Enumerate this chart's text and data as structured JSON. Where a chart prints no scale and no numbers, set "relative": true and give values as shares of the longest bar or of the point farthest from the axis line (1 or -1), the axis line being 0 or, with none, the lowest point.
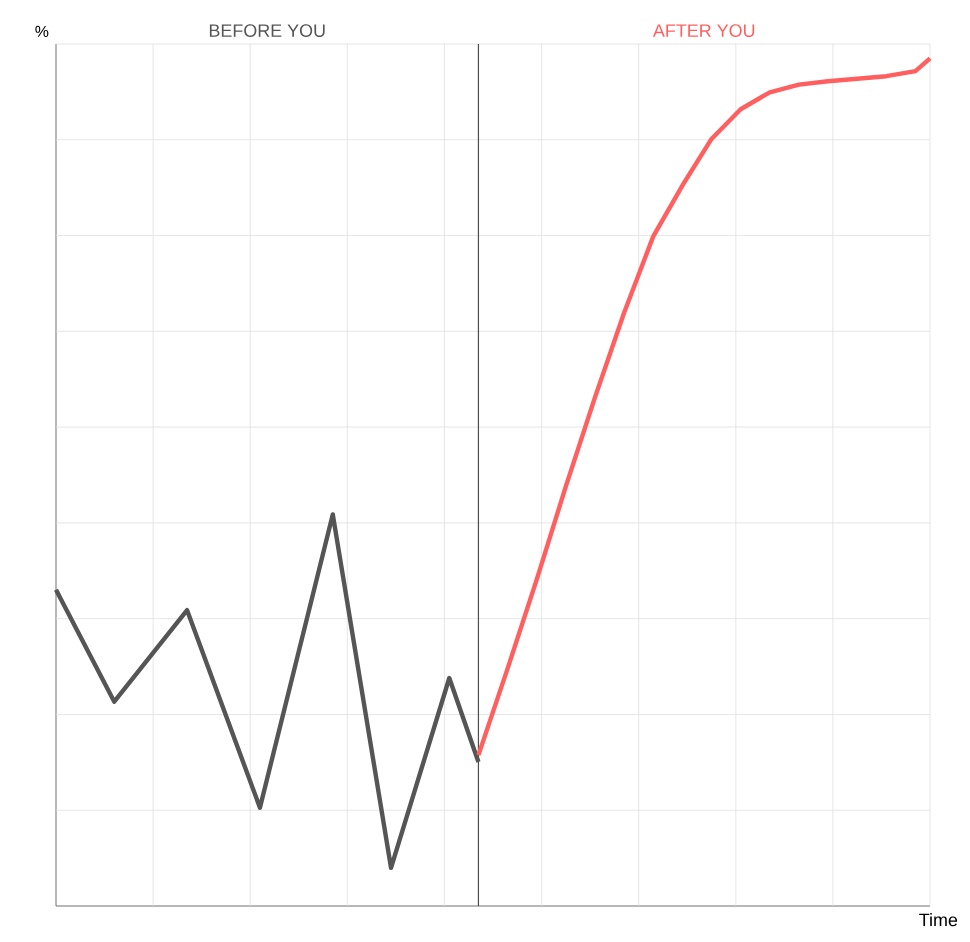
{
  "chart_data": {
    "type": "line",
    "relative": true,
    "xlabel": "Time",
    "ylabel": "%",
    "grid": true,
    "categories": [
      null,
      null,
      null,
      null,
      null,
      null,
      null,
      null,
      null,
      null,
      null,
      null,
      null,
      null,
      null,
      null,
      null,
      null,
      null,
      null,
      null,
      null,
      null,
      null,
      null,
      null,
      null,
      null,
      null,
      null,
      null,
      null,
      null,
      null,
      null,
      null,
      null,
      null,
      null,
      null,
      null,
      null,
      null,
      null,
      null,
      null,
      null,
      null,
      null,
      null,
      null,
      null,
      null,
      null,
      null,
      null,
      null,
      null,
      null,
      null,
      null
    ],
    "series": [
      {
        "name": "BEFORE YOU",
        "color": "#555555",
        "values": [
          0.373,
          null,
          null,
          null,
          0.241,
          null,
          null,
          null,
          null,
          0.349,
          null,
          null,
          null,
          null,
          0.116,
          null,
          null,
          null,
          null,
          0.462,
          null,
          null,
          null,
          0.045,
          null,
          null,
          null,
          0.269,
          null,
          0.17,
          null,
          null,
          null,
          null,
          null,
          null,
          null,
          null,
          null,
          null,
          null,
          null,
          null,
          null,
          null,
          null,
          null,
          null,
          null,
          null,
          null,
          null,
          null,
          null,
          null,
          null,
          null,
          null,
          null,
          null,
          null
        ]
      },
      {
        "name": "AFTER YOU",
        "color": "#ff5f5f",
        "values": [
          null,
          null,
          null,
          null,
          null,
          null,
          null,
          null,
          null,
          null,
          null,
          null,
          null,
          null,
          null,
          null,
          null,
          null,
          null,
          null,
          null,
          null,
          null,
          null,
          null,
          null,
          null,
          null,
          null,
          0.178,
          null,
          0.28,
          null,
          0.385,
          null,
          0.495,
          null,
          0.6,
          null,
          0.7,
          null,
          0.79,
          null,
          0.85,
          null,
          0.905,
          null,
          0.94,
          null,
          0.96,
          null,
          0.969,
          null,
          0.973,
          null,
          0.976,
          null,
          0.979,
          null,
          0.985,
          1.0
        ]
      }
    ]
  }
}
